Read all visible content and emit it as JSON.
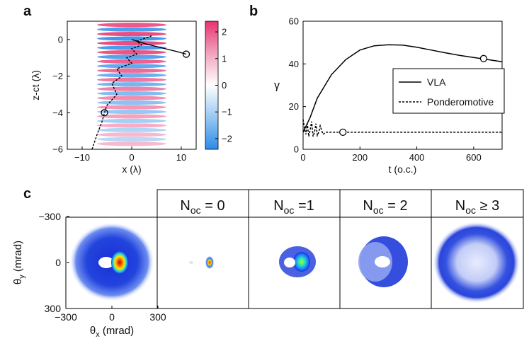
{
  "panel_labels": {
    "a": "a",
    "b": "b",
    "c": "c"
  },
  "colors": {
    "positive": "#e8336f",
    "negative": "#2b8ce8",
    "line": "#000000"
  },
  "chart_data": [
    {
      "id": "a",
      "type": "heatmap",
      "xlabel": "x (λ)",
      "ylabel": "z-ct (λ)",
      "xlim": [
        -13,
        13
      ],
      "ylim": [
        -6,
        1
      ],
      "xticks": [
        -10,
        0,
        10
      ],
      "xtick_labels": [
        "−10",
        "0",
        "10"
      ],
      "yticks": [
        0,
        -2,
        -4,
        -6
      ],
      "ytick_labels": [
        "0",
        "−2",
        "−4",
        "−6"
      ],
      "field": {
        "period": 0.5,
        "x_halfwidth": 7,
        "z_min": -5.8,
        "z_max": 0.8,
        "peak": 2.4
      },
      "colorbar": {
        "range": [
          -2.4,
          2.4
        ],
        "ticks": [
          2,
          1,
          0,
          -1,
          -2
        ],
        "tick_labels": [
          "2",
          "1",
          "0",
          "−1",
          "−2"
        ]
      },
      "series": [
        {
          "name": "VLA",
          "style": "solid",
          "x": [
            0,
            3,
            6,
            9,
            11
          ],
          "z": [
            0,
            -0.25,
            -0.45,
            -0.65,
            -0.8
          ]
        },
        {
          "name": "Ponderomotive",
          "style": "dashed",
          "x": [
            -8,
            -7,
            -6,
            -5.5,
            -5,
            -3,
            -4,
            -2,
            -3,
            0,
            -1,
            1,
            0,
            2,
            1,
            3,
            4
          ],
          "z": [
            -6,
            -5.2,
            -4.5,
            -4,
            -3.6,
            -3,
            -2.4,
            -2,
            -1.6,
            -1.3,
            -1.0,
            -0.8,
            -0.5,
            -0.3,
            -0.1,
            0.1,
            0.2
          ]
        }
      ],
      "markers": [
        {
          "x": 11,
          "z": -0.8
        },
        {
          "x": -5.5,
          "z": -4
        }
      ]
    },
    {
      "id": "b",
      "type": "line",
      "xlabel": "t (o.c.)",
      "ylabel": "γ",
      "xlim": [
        0,
        700
      ],
      "ylim": [
        0,
        60
      ],
      "xticks": [
        0,
        200,
        400,
        600
      ],
      "xtick_labels": [
        "0",
        "200",
        "400",
        "600"
      ],
      "yticks": [
        0,
        20,
        40,
        60
      ],
      "ytick_labels": [
        "0",
        "20",
        "40",
        "60"
      ],
      "legend_position": "center-right",
      "series": [
        {
          "name": "VLA",
          "style": "solid",
          "x": [
            0,
            25,
            50,
            100,
            150,
            200,
            250,
            300,
            350,
            400,
            450,
            500,
            550,
            600,
            650,
            700
          ],
          "y": [
            8,
            15,
            24,
            35,
            42,
            46.5,
            48.5,
            49,
            48.8,
            47.8,
            46.5,
            45.2,
            44,
            43,
            42,
            41
          ]
        },
        {
          "name": "Ponderomotive",
          "style": "dashed",
          "x": [
            0,
            5,
            10,
            15,
            20,
            25,
            30,
            35,
            40,
            45,
            50,
            55,
            60,
            70,
            80,
            100,
            140,
            200,
            300,
            400,
            500,
            600,
            700
          ],
          "y": [
            14,
            10,
            7,
            12,
            6,
            9,
            13,
            6,
            8,
            12,
            6.5,
            8,
            11,
            7,
            8,
            8,
            8,
            8,
            8,
            8,
            8,
            8,
            8
          ]
        }
      ],
      "markers": [
        {
          "x": 140,
          "y": 8
        },
        {
          "x": 635,
          "y": 42.5
        }
      ]
    },
    {
      "id": "c",
      "type": "heatmap",
      "xlabel_parts": [
        "θ",
        "x",
        " (mrad)"
      ],
      "ylabel_parts": [
        "θ",
        "y",
        " (mrad)"
      ],
      "xticks": [
        -300,
        0,
        300
      ],
      "xtick_labels": [
        "−300",
        "0",
        "300"
      ],
      "yticks": [
        -300,
        0,
        300
      ],
      "ytick_labels": [
        "−300",
        "0",
        "300"
      ],
      "subplots": [
        {
          "title": null
        },
        {
          "title": {
            "main": "N",
            "sub": "oc",
            "rel": " = 0"
          }
        },
        {
          "title": {
            "main": "N",
            "sub": "oc",
            "rel": " =1"
          }
        },
        {
          "title": {
            "main": "N",
            "sub": "oc",
            "rel": " = 2"
          }
        },
        {
          "title": {
            "main": "N",
            "sub": "oc",
            "rel": " ≥ 3"
          }
        }
      ]
    }
  ]
}
